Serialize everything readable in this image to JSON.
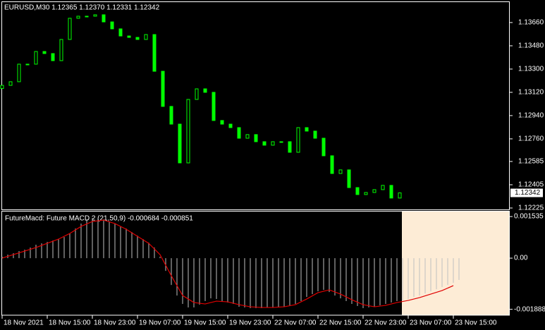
{
  "chart_data": [
    {
      "type": "candlestick",
      "title": "EURUSD,M30  1.12365 1.12370 1.12331 1.12342",
      "color": "#00ff00",
      "x": [
        0,
        3,
        6,
        9,
        12,
        15,
        18,
        21,
        24,
        27,
        30,
        33,
        36,
        39,
        42,
        45,
        48,
        51,
        54,
        57,
        60,
        63,
        66,
        69,
        72,
        75,
        78,
        81,
        84,
        87,
        90,
        93,
        96,
        99,
        102,
        105,
        108,
        111,
        114,
        117,
        120,
        123,
        126,
        129,
        132,
        135,
        138,
        141
      ],
      "open": [
        1.1315,
        1.13174,
        1.13202,
        1.13338,
        1.13338,
        1.13436,
        1.1342,
        1.13365,
        1.13529,
        1.13693,
        1.13709,
        1.13709,
        1.1372,
        1.13665,
        1.13611,
        1.13556,
        1.13545,
        1.13529,
        1.13567,
        1.13283,
        1.13011,
        1.12874,
        1.12574,
        1.13065,
        1.13147,
        1.1312,
        1.12902,
        1.12874,
        1.12847,
        1.12765,
        1.12793,
        1.12738,
        1.12711,
        1.12738,
        1.12738,
        1.12656,
        1.12847,
        1.1282,
        1.12765,
        1.12629,
        1.12492,
        1.1252,
        1.12383,
        1.12329,
        1.12345,
        1.12367,
        1.124,
        1.12302
      ],
      "close": [
        1.13174,
        1.13202,
        1.13338,
        1.13338,
        1.13436,
        1.1342,
        1.13365,
        1.13529,
        1.13693,
        1.13709,
        1.13709,
        1.1372,
        1.13665,
        1.13611,
        1.13556,
        1.13545,
        1.13529,
        1.13567,
        1.13283,
        1.13011,
        1.12874,
        1.12574,
        1.13065,
        1.13147,
        1.1312,
        1.12902,
        1.12874,
        1.12847,
        1.12765,
        1.12793,
        1.12738,
        1.12711,
        1.12738,
        1.12738,
        1.12656,
        1.12847,
        1.1282,
        1.12765,
        1.12629,
        1.12492,
        1.1252,
        1.12383,
        1.12329,
        1.12345,
        1.12367,
        1.124,
        1.12302,
        1.12342
      ],
      "current_price_label": "1.12342",
      "xlim": [
        0,
        180
      ],
      "ylim": [
        1.12214,
        1.13818
      ],
      "yticks": [
        {
          "value": 1.1366,
          "label": "1.13660"
        },
        {
          "value": 1.1348,
          "label": "1.13480"
        },
        {
          "value": 1.133,
          "label": "1.13300"
        },
        {
          "value": 1.1312,
          "label": "1.13120"
        },
        {
          "value": 1.1294,
          "label": "1.12940"
        },
        {
          "value": 1.1276,
          "label": "1.12760"
        },
        1.12585,
        1.12405,
        1.12225
      ]
    },
    {
      "type": "macd",
      "title": "FutureMacd: Future MACD 2 (21,50,9) -0.000684 -0.000851",
      "color": "#c0c0c0",
      "x": [
        0,
        2,
        4,
        6,
        8,
        10,
        12,
        14,
        16,
        18,
        20,
        22,
        24,
        26,
        28,
        30,
        32,
        34,
        36,
        38,
        40,
        42,
        44,
        46,
        48,
        50,
        52,
        54,
        56,
        58,
        60,
        62,
        64,
        66,
        68,
        70,
        72,
        74,
        76,
        78,
        80,
        82,
        84,
        86,
        88,
        90,
        92,
        94,
        96,
        98,
        100,
        102,
        104,
        106,
        108,
        110,
        112,
        114,
        116,
        118,
        120,
        122,
        124,
        126,
        128,
        130,
        132,
        134,
        136,
        138,
        140,
        142,
        144,
        146,
        148,
        150,
        152,
        154,
        156,
        158,
        160,
        162
      ],
      "values": [
        5.2e-05,
        0.00013,
        0.000182,
        0.00026,
        0.000312,
        0.00039,
        0.000494,
        0.000546,
        0.000598,
        0.00065,
        0.000702,
        0.00078,
        0.000911,
        0.001093,
        0.001275,
        0.001431,
        0.001483,
        0.001483,
        0.001431,
        0.001353,
        0.001275,
        0.001171,
        0.001093,
        0.000963,
        0.000832,
        0.000702,
        0.000572,
        0.00039,
        5.2e-05,
        -0.000468,
        -0.000989,
        -0.001379,
        -0.001691,
        -0.001821,
        -0.001821,
        -0.001717,
        -0.001587,
        -0.001483,
        -0.001509,
        -0.001587,
        -0.001639,
        -0.001691,
        -0.001795,
        -0.001821,
        -0.001847,
        -0.001847,
        -0.001847,
        -0.001821,
        -0.001821,
        -0.001795,
        -0.001795,
        -0.001769,
        -0.001691,
        -0.001587,
        -0.001431,
        -0.001327,
        -0.001223,
        -0.001171,
        -0.001249,
        -0.001379,
        -0.001483,
        -0.001587,
        -0.001691,
        -0.001769,
        -0.001847,
        -0.001821,
        -0.001795,
        -0.001743,
        -0.001691,
        -0.001639,
        -0.001587,
        -0.001561,
        -0.001509,
        -0.001431,
        -0.001379,
        -0.001301,
        -0.001223,
        -0.001145,
        -0.001067,
        -0.000989,
        -0.000911,
        -0.000806
      ],
      "signal": {
        "color": "#e00000",
        "x": [
          0,
          4,
          8,
          12,
          16,
          20,
          24,
          28,
          32,
          36,
          40,
          44,
          48,
          52,
          56,
          60,
          64,
          68,
          72,
          76,
          80,
          84,
          88,
          92,
          96,
          100,
          104,
          108,
          112,
          116,
          120,
          124,
          128,
          132,
          136,
          140,
          144,
          148,
          152,
          156,
          160
        ],
        "values": [
          0,
          0.00013,
          0.00026,
          0.00039,
          0.000546,
          0.000702,
          0.000911,
          0.001171,
          0.001353,
          0.001405,
          0.001275,
          0.001067,
          0.000806,
          0.000546,
          0.00013,
          -0.00065,
          -0.001379,
          -0.001639,
          -0.001691,
          -0.001587,
          -0.001613,
          -0.001717,
          -0.001795,
          -0.001821,
          -0.001821,
          -0.001795,
          -0.001717,
          -0.001509,
          -0.001275,
          -0.001171,
          -0.001327,
          -0.001535,
          -0.001717,
          -0.001795,
          -0.001743,
          -0.001639,
          -0.001561,
          -0.001457,
          -0.001327,
          -0.001197,
          -0.001015
        ]
      },
      "xlim": [
        0,
        180
      ],
      "ylim": [
        -0.00208,
        0.00172
      ],
      "yticks": [
        0.001535,
        {
          "value": 0,
          "label": "0.00"
        },
        -0.001888
      ],
      "xticks": [
        {
          "value": 0,
          "label": "18 Nov 2021"
        },
        {
          "value": 16,
          "label": "18 Nov 15:00"
        },
        {
          "value": 32,
          "label": "18 Nov 23:00"
        },
        {
          "value": 48,
          "label": "19 Nov 07:00"
        },
        {
          "value": 64,
          "label": "19 Nov 15:00"
        },
        {
          "value": 80,
          "label": "19 Nov 23:00"
        },
        {
          "value": 96,
          "label": "22 Nov 07:00"
        },
        {
          "value": 112,
          "label": "22 Nov 15:00"
        },
        {
          "value": 128,
          "label": "22 Nov 23:00"
        },
        {
          "value": 144,
          "label": "23 Nov 07:00"
        },
        {
          "value": 160,
          "label": "23 Nov 15:00"
        }
      ]
    }
  ]
}
